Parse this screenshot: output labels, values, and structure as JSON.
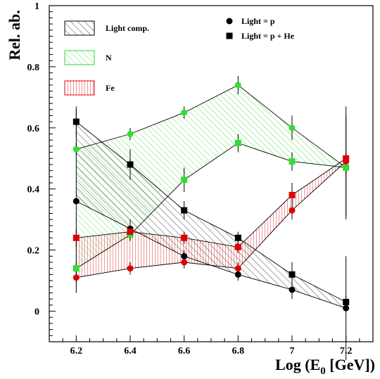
{
  "chart_data": {
    "type": "scatter",
    "title": "",
    "xlabel": "Log (E",
    "xlabel_sub": "0",
    "xlabel_tail": " [GeV])",
    "ylabel": "Rel. ab.",
    "xlim": [
      6.1,
      7.3
    ],
    "ylim": [
      -0.1,
      1.0
    ],
    "x": [
      6.2,
      6.4,
      6.6,
      6.8,
      7.0,
      7.2
    ],
    "x_ticks": [
      "6.2",
      "6.4",
      "6.6",
      "6.8",
      "7",
      "7.2"
    ],
    "y_ticks": [
      "0",
      "0.2",
      "0.4",
      "0.6",
      "0.8",
      "1"
    ],
    "y_tick_values": [
      0,
      0.2,
      0.4,
      0.6,
      0.8,
      1.0
    ],
    "grid": false,
    "legend_position": "top-left",
    "bands": [
      {
        "name": "Light comp.",
        "color": "#000000",
        "lower": "Light (p)",
        "upper": "Light (p + He)"
      },
      {
        "name": "N",
        "color": "#33dd33",
        "lower": "N (p + He)",
        "upper": "N (p)"
      },
      {
        "name": "Fe",
        "color": "#e00000",
        "lower": "Fe (p)",
        "upper": "Fe (p + He)"
      }
    ],
    "marker_legend": [
      {
        "label": "Light = p",
        "marker": "circle"
      },
      {
        "label": "Light = p + He",
        "marker": "square"
      }
    ],
    "series": [
      {
        "key": "light_p",
        "component": "Light comp.",
        "assumption": "Light = p",
        "marker": "circle",
        "color": "#000000",
        "values": [
          0.36,
          0.27,
          0.18,
          0.12,
          0.07,
          0.01
        ],
        "errors": [
          0.3,
          0.03,
          0.02,
          0.02,
          0.03,
          0.17
        ]
      },
      {
        "key": "light_phe",
        "component": "Light comp.",
        "assumption": "Light = p + He",
        "marker": "square",
        "color": "#000000",
        "values": [
          0.62,
          0.48,
          0.33,
          0.24,
          0.12,
          0.03
        ],
        "errors": [
          0.05,
          0.05,
          0.03,
          0.02,
          0.04,
          0.02
        ]
      },
      {
        "key": "n_p",
        "component": "N",
        "assumption": "Light = p",
        "marker": "circle",
        "color": "#33dd33",
        "values": [
          0.53,
          0.58,
          0.65,
          0.74,
          0.6,
          0.47
        ],
        "errors": [
          0.02,
          0.02,
          0.02,
          0.03,
          0.04,
          0.17
        ]
      },
      {
        "key": "n_phe",
        "component": "N",
        "assumption": "Light = p + He",
        "marker": "square",
        "color": "#33dd33",
        "values": [
          0.14,
          0.25,
          0.43,
          0.55,
          0.49,
          0.47
        ],
        "errors": [
          0.02,
          0.02,
          0.04,
          0.03,
          0.03,
          0.02
        ]
      },
      {
        "key": "fe_p",
        "component": "Fe",
        "assumption": "Light = p",
        "marker": "circle",
        "color": "#e00000",
        "values": [
          0.11,
          0.14,
          0.16,
          0.14,
          0.33,
          0.49
        ],
        "errors": [
          0.02,
          0.02,
          0.02,
          0.02,
          0.03,
          0.18
        ]
      },
      {
        "key": "fe_phe",
        "component": "Fe",
        "assumption": "Light = p + He",
        "marker": "square",
        "color": "#e00000",
        "values": [
          0.24,
          0.26,
          0.24,
          0.21,
          0.38,
          0.5
        ],
        "errors": [
          0.03,
          0.02,
          0.02,
          0.02,
          0.04,
          0.02
        ]
      }
    ]
  }
}
